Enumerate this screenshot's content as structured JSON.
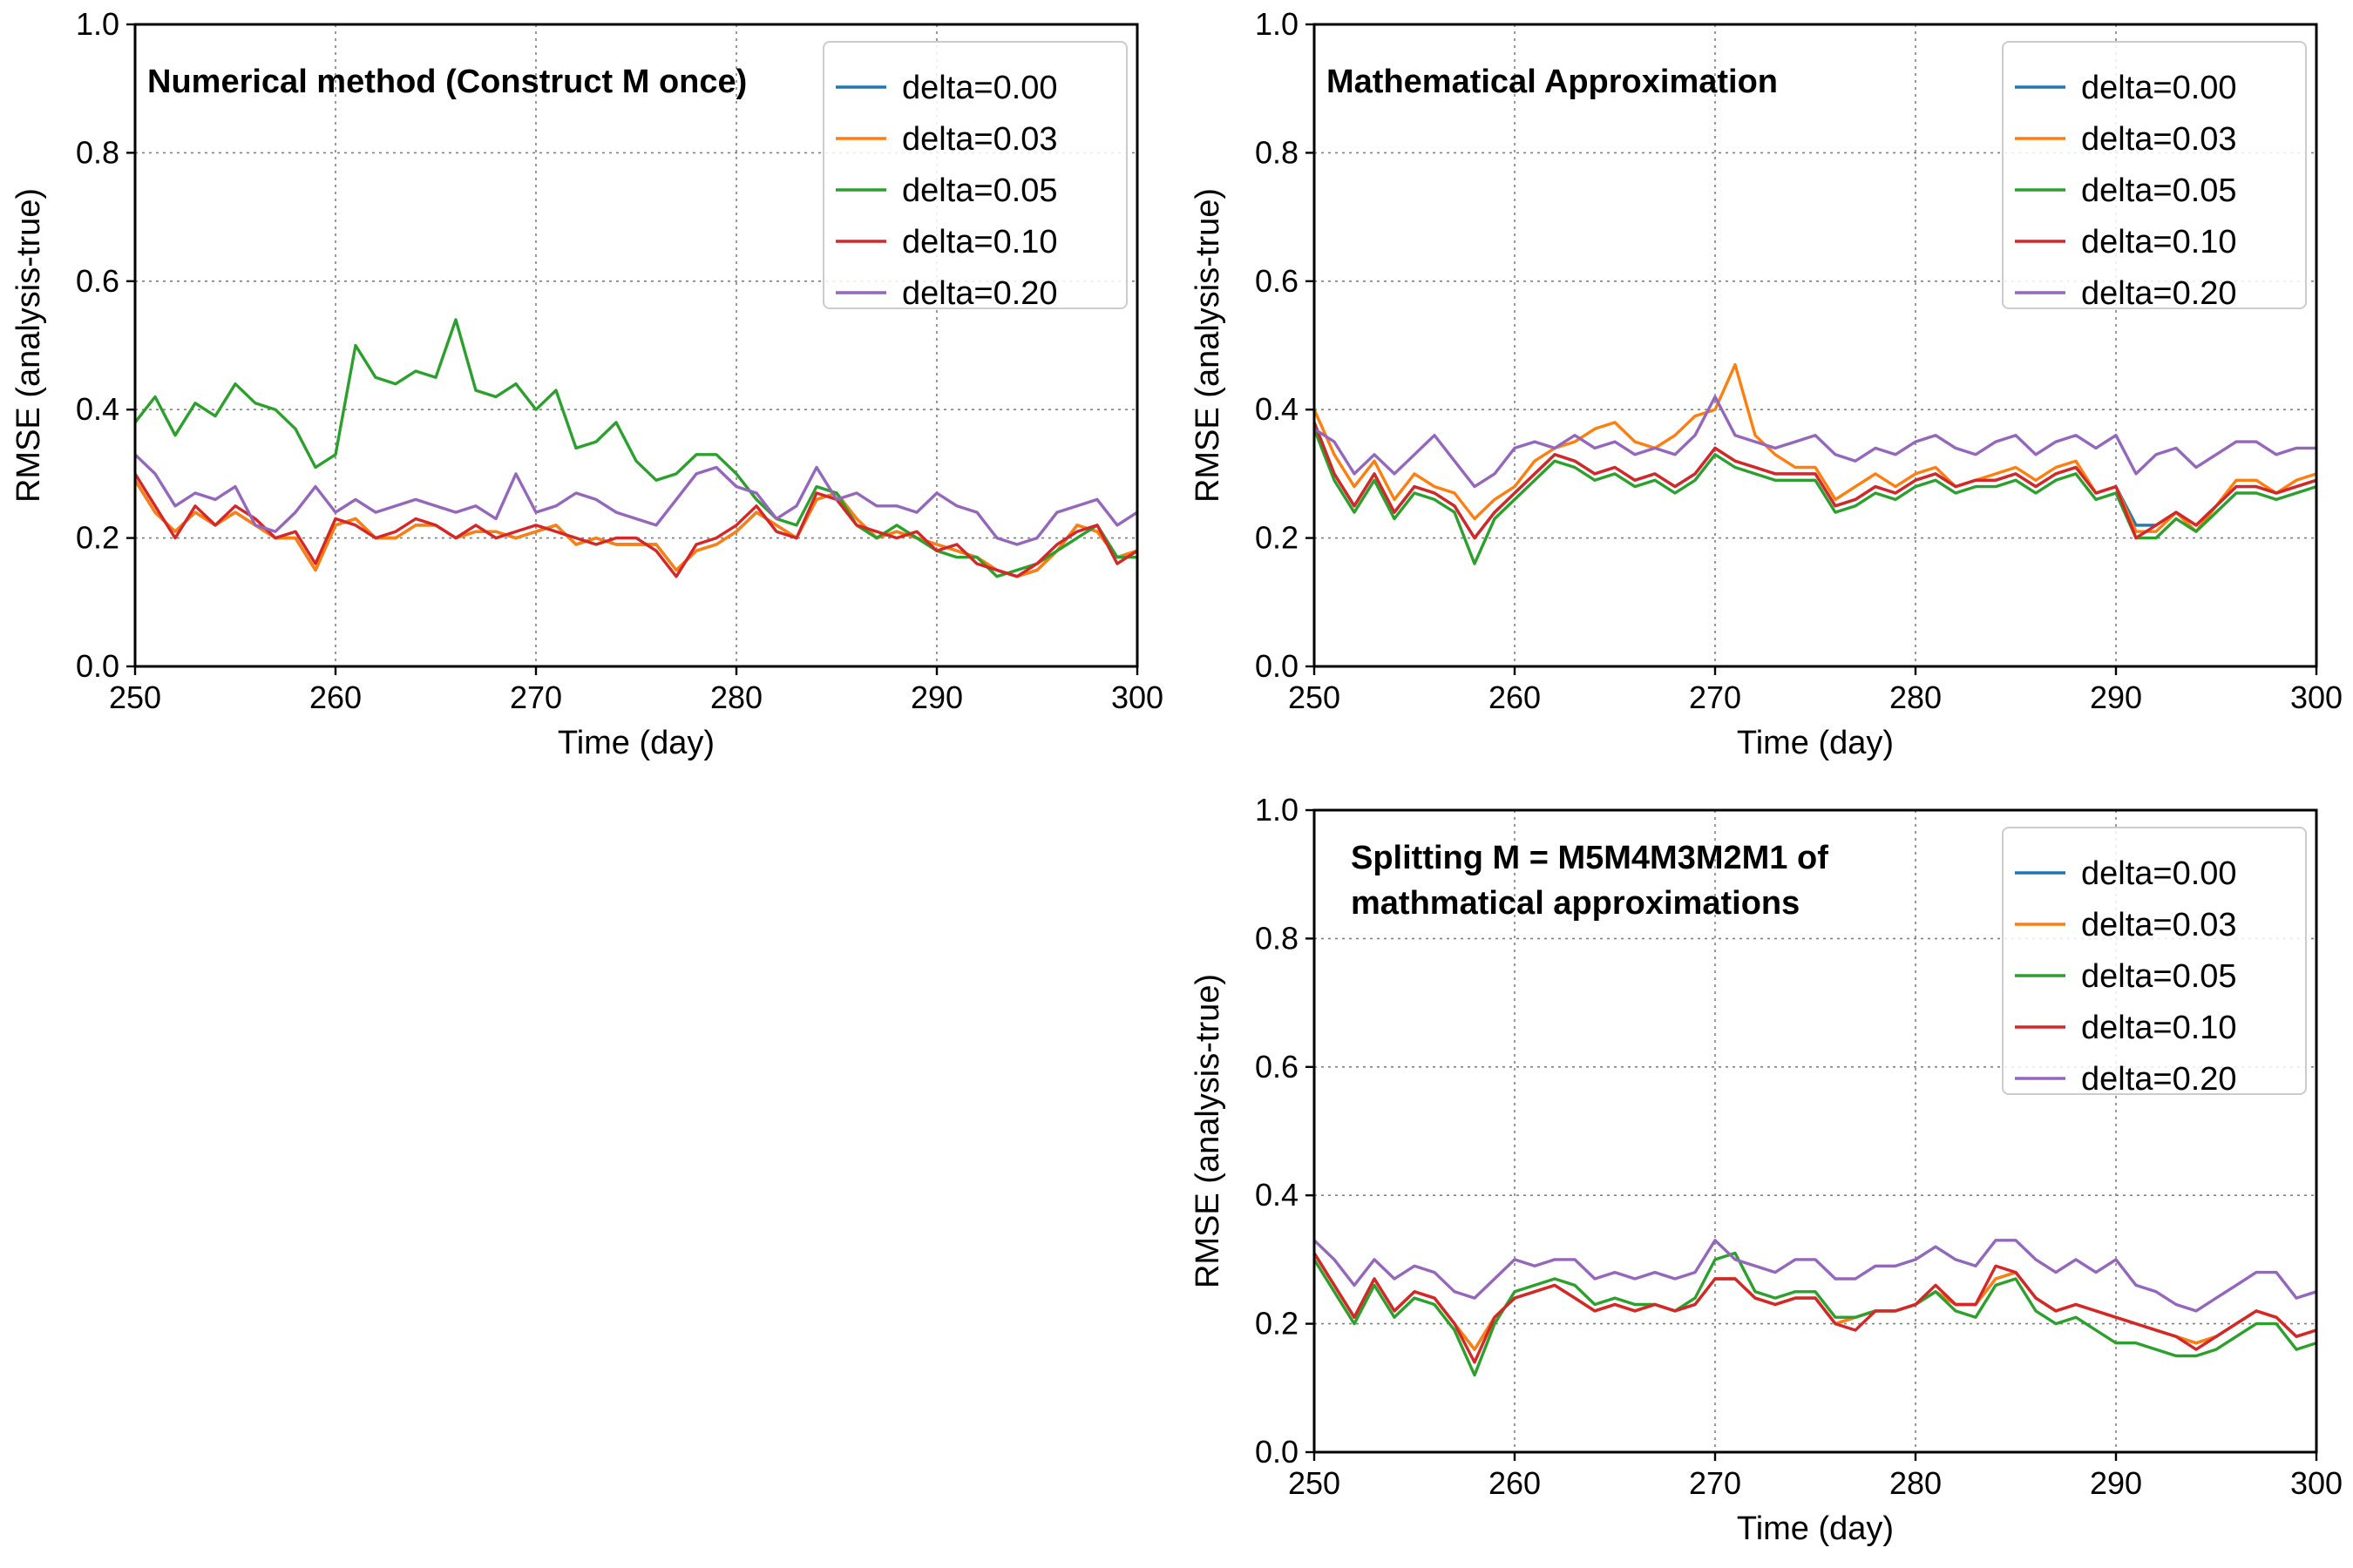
{
  "colors": {
    "delta_0_00": "#1f77b4",
    "delta_0_03": "#ff7f0e",
    "delta_0_05": "#2ca02c",
    "delta_0_10": "#d62728",
    "delta_0_20": "#9467bd"
  },
  "chart_data": [
    {
      "type": "line",
      "title": "Numerical method (Construct M once)",
      "xlabel": "Time (day)",
      "ylabel": "RMSE (analysis-true)",
      "xlim": [
        250,
        300
      ],
      "ylim": [
        0.0,
        1.0
      ],
      "xticks": [
        "250",
        "260",
        "270",
        "280",
        "290",
        "300"
      ],
      "yticks": [
        "0.0",
        "0.2",
        "0.4",
        "0.6",
        "0.8",
        "1.0"
      ],
      "grid": true,
      "legend_position": "top-right",
      "x": [
        250,
        251,
        252,
        253,
        254,
        255,
        256,
        257,
        258,
        259,
        260,
        261,
        262,
        263,
        264,
        265,
        266,
        267,
        268,
        269,
        270,
        271,
        272,
        273,
        274,
        275,
        276,
        277,
        278,
        279,
        280,
        281,
        282,
        283,
        284,
        285,
        286,
        287,
        288,
        289,
        290,
        291,
        292,
        293,
        294,
        295,
        296,
        297,
        298,
        299,
        300
      ],
      "series": [
        {
          "name": "delta=0.00",
          "color_key": "delta_0_00",
          "values": [
            0.29,
            0.24,
            0.21,
            0.24,
            0.22,
            0.24,
            0.22,
            0.2,
            0.2,
            0.15,
            0.22,
            0.23,
            0.2,
            0.2,
            0.22,
            0.22,
            0.2,
            0.21,
            0.21,
            0.2,
            0.21,
            0.22,
            0.19,
            0.2,
            0.19,
            0.19,
            0.19,
            0.15,
            0.18,
            0.19,
            0.21,
            0.24,
            0.22,
            0.2,
            0.26,
            0.27,
            0.23,
            0.2,
            0.21,
            0.2,
            0.19,
            0.18,
            0.17,
            0.15,
            0.14,
            0.15,
            0.18,
            0.22,
            0.21,
            0.17,
            0.18
          ]
        },
        {
          "name": "delta=0.03",
          "color_key": "delta_0_03",
          "values": [
            0.29,
            0.24,
            0.21,
            0.24,
            0.22,
            0.24,
            0.22,
            0.2,
            0.2,
            0.15,
            0.22,
            0.23,
            0.2,
            0.2,
            0.22,
            0.22,
            0.2,
            0.21,
            0.21,
            0.2,
            0.21,
            0.22,
            0.19,
            0.2,
            0.19,
            0.19,
            0.19,
            0.15,
            0.18,
            0.19,
            0.21,
            0.24,
            0.22,
            0.2,
            0.26,
            0.27,
            0.23,
            0.2,
            0.21,
            0.2,
            0.19,
            0.18,
            0.17,
            0.15,
            0.14,
            0.15,
            0.18,
            0.22,
            0.21,
            0.17,
            0.18
          ]
        },
        {
          "name": "delta=0.05",
          "color_key": "delta_0_05",
          "values": [
            0.38,
            0.42,
            0.36,
            0.41,
            0.39,
            0.44,
            0.41,
            0.4,
            0.37,
            0.31,
            0.33,
            0.5,
            0.45,
            0.44,
            0.46,
            0.45,
            0.54,
            0.43,
            0.42,
            0.44,
            0.4,
            0.43,
            0.34,
            0.35,
            0.38,
            0.32,
            0.29,
            0.3,
            0.33,
            0.33,
            0.3,
            0.26,
            0.23,
            0.22,
            0.28,
            0.27,
            0.22,
            0.2,
            0.22,
            0.2,
            0.18,
            0.17,
            0.17,
            0.14,
            0.15,
            0.16,
            0.18,
            0.2,
            0.22,
            0.17,
            0.17
          ]
        },
        {
          "name": "delta=0.10",
          "color_key": "delta_0_10",
          "values": [
            0.3,
            0.25,
            0.2,
            0.25,
            0.22,
            0.25,
            0.23,
            0.2,
            0.21,
            0.16,
            0.23,
            0.22,
            0.2,
            0.21,
            0.23,
            0.22,
            0.2,
            0.22,
            0.2,
            0.21,
            0.22,
            0.21,
            0.2,
            0.19,
            0.2,
            0.2,
            0.18,
            0.14,
            0.19,
            0.2,
            0.22,
            0.25,
            0.21,
            0.2,
            0.27,
            0.26,
            0.22,
            0.21,
            0.2,
            0.21,
            0.18,
            0.19,
            0.16,
            0.15,
            0.14,
            0.16,
            0.19,
            0.21,
            0.22,
            0.16,
            0.18
          ]
        },
        {
          "name": "delta=0.20",
          "color_key": "delta_0_20",
          "values": [
            0.33,
            0.3,
            0.25,
            0.27,
            0.26,
            0.28,
            0.22,
            0.21,
            0.24,
            0.28,
            0.24,
            0.26,
            0.24,
            0.25,
            0.26,
            0.25,
            0.24,
            0.25,
            0.23,
            0.3,
            0.24,
            0.25,
            0.27,
            0.26,
            0.24,
            0.23,
            0.22,
            0.26,
            0.3,
            0.31,
            0.28,
            0.27,
            0.23,
            0.25,
            0.31,
            0.26,
            0.27,
            0.25,
            0.25,
            0.24,
            0.27,
            0.25,
            0.24,
            0.2,
            0.19,
            0.2,
            0.24,
            0.25,
            0.26,
            0.22,
            0.24
          ]
        }
      ]
    },
    {
      "type": "line",
      "title": "Mathematical Approximation",
      "xlabel": "Time (day)",
      "ylabel": "RMSE (analysis-true)",
      "xlim": [
        250,
        300
      ],
      "ylim": [
        0.0,
        1.0
      ],
      "xticks": [
        "250",
        "260",
        "270",
        "280",
        "290",
        "300"
      ],
      "yticks": [
        "0.0",
        "0.2",
        "0.4",
        "0.6",
        "0.8",
        "1.0"
      ],
      "grid": true,
      "legend_position": "top-right",
      "x": [
        250,
        251,
        252,
        253,
        254,
        255,
        256,
        257,
        258,
        259,
        260,
        261,
        262,
        263,
        264,
        265,
        266,
        267,
        268,
        269,
        270,
        271,
        272,
        273,
        274,
        275,
        276,
        277,
        278,
        279,
        280,
        281,
        282,
        283,
        284,
        285,
        286,
        287,
        288,
        289,
        290,
        291,
        292,
        293,
        294,
        295,
        296,
        297,
        298,
        299,
        300
      ],
      "series": [
        {
          "name": "delta=0.00",
          "color_key": "delta_0_00",
          "values": [
            0.38,
            0.3,
            0.25,
            0.3,
            0.24,
            0.28,
            0.27,
            0.25,
            0.2,
            0.24,
            0.27,
            0.3,
            0.33,
            0.32,
            0.3,
            0.31,
            0.29,
            0.3,
            0.28,
            0.3,
            0.34,
            0.32,
            0.31,
            0.3,
            0.3,
            0.3,
            0.25,
            0.26,
            0.28,
            0.27,
            0.29,
            0.3,
            0.28,
            0.29,
            0.29,
            0.3,
            0.28,
            0.3,
            0.31,
            0.27,
            0.28,
            0.22,
            0.22,
            0.24,
            0.22,
            0.25,
            0.28,
            0.28,
            0.27,
            0.28,
            0.29
          ]
        },
        {
          "name": "delta=0.03",
          "color_key": "delta_0_03",
          "values": [
            0.4,
            0.33,
            0.28,
            0.32,
            0.26,
            0.3,
            0.28,
            0.27,
            0.23,
            0.26,
            0.28,
            0.32,
            0.34,
            0.35,
            0.37,
            0.38,
            0.35,
            0.34,
            0.36,
            0.39,
            0.4,
            0.47,
            0.36,
            0.33,
            0.31,
            0.31,
            0.26,
            0.28,
            0.3,
            0.28,
            0.3,
            0.31,
            0.28,
            0.29,
            0.3,
            0.31,
            0.29,
            0.31,
            0.32,
            0.27,
            0.28,
            0.21,
            0.21,
            0.24,
            0.21,
            0.25,
            0.29,
            0.29,
            0.27,
            0.29,
            0.3
          ]
        },
        {
          "name": "delta=0.05",
          "color_key": "delta_0_05",
          "values": [
            0.37,
            0.29,
            0.24,
            0.29,
            0.23,
            0.27,
            0.26,
            0.24,
            0.16,
            0.23,
            0.26,
            0.29,
            0.32,
            0.31,
            0.29,
            0.3,
            0.28,
            0.29,
            0.27,
            0.29,
            0.33,
            0.31,
            0.3,
            0.29,
            0.29,
            0.29,
            0.24,
            0.25,
            0.27,
            0.26,
            0.28,
            0.29,
            0.27,
            0.28,
            0.28,
            0.29,
            0.27,
            0.29,
            0.3,
            0.26,
            0.27,
            0.2,
            0.2,
            0.23,
            0.21,
            0.24,
            0.27,
            0.27,
            0.26,
            0.27,
            0.28
          ]
        },
        {
          "name": "delta=0.10",
          "color_key": "delta_0_10",
          "values": [
            0.38,
            0.3,
            0.25,
            0.3,
            0.24,
            0.28,
            0.27,
            0.25,
            0.2,
            0.24,
            0.27,
            0.3,
            0.33,
            0.32,
            0.3,
            0.31,
            0.29,
            0.3,
            0.28,
            0.3,
            0.34,
            0.32,
            0.31,
            0.3,
            0.3,
            0.3,
            0.25,
            0.26,
            0.28,
            0.27,
            0.29,
            0.3,
            0.28,
            0.29,
            0.29,
            0.3,
            0.28,
            0.3,
            0.31,
            0.27,
            0.28,
            0.2,
            0.22,
            0.24,
            0.22,
            0.25,
            0.28,
            0.28,
            0.27,
            0.28,
            0.29
          ]
        },
        {
          "name": "delta=0.20",
          "color_key": "delta_0_20",
          "values": [
            0.37,
            0.35,
            0.3,
            0.33,
            0.3,
            0.33,
            0.36,
            0.32,
            0.28,
            0.3,
            0.34,
            0.35,
            0.34,
            0.36,
            0.34,
            0.35,
            0.33,
            0.34,
            0.33,
            0.36,
            0.42,
            0.36,
            0.35,
            0.34,
            0.35,
            0.36,
            0.33,
            0.32,
            0.34,
            0.33,
            0.35,
            0.36,
            0.34,
            0.33,
            0.35,
            0.36,
            0.33,
            0.35,
            0.36,
            0.34,
            0.36,
            0.3,
            0.33,
            0.34,
            0.31,
            0.33,
            0.35,
            0.35,
            0.33,
            0.34,
            0.34
          ]
        }
      ]
    },
    {
      "type": "line",
      "title": "Splitting M = M5M4M3M2M1 of mathmatical approximations",
      "title_lines": [
        "Splitting M = M5M4M3M2M1 of",
        "mathmatical approximations"
      ],
      "xlabel": "Time (day)",
      "ylabel": "RMSE (analysis-true)",
      "xlim": [
        250,
        300
      ],
      "ylim": [
        0.0,
        1.0
      ],
      "xticks": [
        "250",
        "260",
        "270",
        "280",
        "290",
        "300"
      ],
      "yticks": [
        "0.0",
        "0.2",
        "0.4",
        "0.6",
        "0.8",
        "1.0"
      ],
      "grid": true,
      "legend_position": "top-right",
      "x": [
        250,
        251,
        252,
        253,
        254,
        255,
        256,
        257,
        258,
        259,
        260,
        261,
        262,
        263,
        264,
        265,
        266,
        267,
        268,
        269,
        270,
        271,
        272,
        273,
        274,
        275,
        276,
        277,
        278,
        279,
        280,
        281,
        282,
        283,
        284,
        285,
        286,
        287,
        288,
        289,
        290,
        291,
        292,
        293,
        294,
        295,
        296,
        297,
        298,
        299,
        300
      ],
      "series": [
        {
          "name": "delta=0.00",
          "color_key": "delta_0_00",
          "values": [
            0.31,
            0.26,
            0.21,
            0.27,
            0.22,
            0.25,
            0.24,
            0.2,
            0.16,
            0.21,
            0.24,
            0.25,
            0.26,
            0.24,
            0.22,
            0.23,
            0.22,
            0.23,
            0.22,
            0.23,
            0.27,
            0.27,
            0.24,
            0.23,
            0.24,
            0.24,
            0.2,
            0.21,
            0.22,
            0.22,
            0.23,
            0.25,
            0.23,
            0.23,
            0.27,
            0.28,
            0.24,
            0.22,
            0.23,
            0.22,
            0.21,
            0.2,
            0.19,
            0.18,
            0.17,
            0.18,
            0.2,
            0.22,
            0.21,
            0.18,
            0.19
          ]
        },
        {
          "name": "delta=0.03",
          "color_key": "delta_0_03",
          "values": [
            0.31,
            0.26,
            0.21,
            0.27,
            0.22,
            0.25,
            0.24,
            0.2,
            0.16,
            0.21,
            0.24,
            0.25,
            0.26,
            0.24,
            0.22,
            0.23,
            0.22,
            0.23,
            0.22,
            0.23,
            0.27,
            0.27,
            0.24,
            0.23,
            0.24,
            0.24,
            0.2,
            0.21,
            0.22,
            0.22,
            0.23,
            0.25,
            0.23,
            0.23,
            0.27,
            0.28,
            0.24,
            0.22,
            0.23,
            0.22,
            0.21,
            0.2,
            0.19,
            0.18,
            0.17,
            0.18,
            0.2,
            0.22,
            0.21,
            0.18,
            0.19
          ]
        },
        {
          "name": "delta=0.05",
          "color_key": "delta_0_05",
          "values": [
            0.3,
            0.25,
            0.2,
            0.26,
            0.21,
            0.24,
            0.23,
            0.19,
            0.12,
            0.2,
            0.25,
            0.26,
            0.27,
            0.26,
            0.23,
            0.24,
            0.23,
            0.23,
            0.22,
            0.24,
            0.3,
            0.31,
            0.25,
            0.24,
            0.25,
            0.25,
            0.21,
            0.21,
            0.22,
            0.22,
            0.23,
            0.25,
            0.22,
            0.21,
            0.26,
            0.27,
            0.22,
            0.2,
            0.21,
            0.19,
            0.17,
            0.17,
            0.16,
            0.15,
            0.15,
            0.16,
            0.18,
            0.2,
            0.2,
            0.16,
            0.17
          ]
        },
        {
          "name": "delta=0.10",
          "color_key": "delta_0_10",
          "values": [
            0.31,
            0.26,
            0.21,
            0.27,
            0.22,
            0.25,
            0.24,
            0.2,
            0.14,
            0.21,
            0.24,
            0.25,
            0.26,
            0.24,
            0.22,
            0.23,
            0.22,
            0.23,
            0.22,
            0.23,
            0.27,
            0.27,
            0.24,
            0.23,
            0.24,
            0.24,
            0.2,
            0.19,
            0.22,
            0.22,
            0.23,
            0.26,
            0.23,
            0.23,
            0.29,
            0.28,
            0.24,
            0.22,
            0.23,
            0.22,
            0.21,
            0.2,
            0.19,
            0.18,
            0.16,
            0.18,
            0.2,
            0.22,
            0.21,
            0.18,
            0.19
          ]
        },
        {
          "name": "delta=0.20",
          "color_key": "delta_0_20",
          "values": [
            0.33,
            0.3,
            0.26,
            0.3,
            0.27,
            0.29,
            0.28,
            0.25,
            0.24,
            0.27,
            0.3,
            0.29,
            0.3,
            0.3,
            0.27,
            0.28,
            0.27,
            0.28,
            0.27,
            0.28,
            0.33,
            0.3,
            0.29,
            0.28,
            0.3,
            0.3,
            0.27,
            0.27,
            0.29,
            0.29,
            0.3,
            0.32,
            0.3,
            0.29,
            0.33,
            0.33,
            0.3,
            0.28,
            0.3,
            0.28,
            0.3,
            0.26,
            0.25,
            0.23,
            0.22,
            0.24,
            0.26,
            0.28,
            0.28,
            0.24,
            0.25
          ]
        }
      ]
    }
  ]
}
